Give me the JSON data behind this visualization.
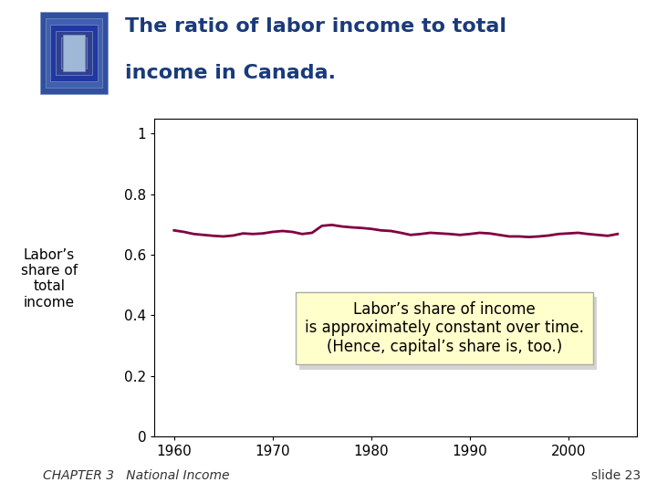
{
  "title_line1": "The ratio of labor income to total",
  "title_line2": "income in Canada.",
  "title_color": "#1a3a7a",
  "title_fontsize": 16,
  "ylabel": "Labor’s\nshare of\ntotal\nincome",
  "ylabel_fontsize": 11,
  "xlim": [
    1958,
    2007
  ],
  "ylim": [
    0,
    1.05
  ],
  "yticks": [
    0,
    0.2,
    0.4,
    0.6,
    0.8,
    1
  ],
  "xticks": [
    1960,
    1970,
    1980,
    1990,
    2000
  ],
  "line_color": "#800040",
  "line_width": 2.0,
  "annotation_text": "Labor’s share of income\nis approximately constant over time.\n(Hence, capital’s share is, too.)",
  "annotation_fontsize": 12,
  "annotation_bg": "#ffffcc",
  "annotation_border": "#aaaaaa",
  "footer_left": "CHAPTER 3   National Income",
  "footer_right": "slide 23",
  "footer_fontsize": 10,
  "bg_color": "#d8ecc8",
  "slide_bg": "#ffffff",
  "x_values": [
    1960,
    1961,
    1962,
    1963,
    1964,
    1965,
    1966,
    1967,
    1968,
    1969,
    1970,
    1971,
    1972,
    1973,
    1974,
    1975,
    1976,
    1977,
    1978,
    1979,
    1980,
    1981,
    1982,
    1983,
    1984,
    1985,
    1986,
    1987,
    1988,
    1989,
    1990,
    1991,
    1992,
    1993,
    1994,
    1995,
    1996,
    1997,
    1998,
    1999,
    2000,
    2001,
    2002,
    2003,
    2004,
    2005
  ],
  "y_values": [
    0.68,
    0.675,
    0.668,
    0.665,
    0.662,
    0.66,
    0.663,
    0.67,
    0.668,
    0.67,
    0.675,
    0.678,
    0.675,
    0.668,
    0.672,
    0.695,
    0.698,
    0.693,
    0.69,
    0.688,
    0.685,
    0.68,
    0.678,
    0.672,
    0.665,
    0.668,
    0.672,
    0.67,
    0.668,
    0.665,
    0.668,
    0.672,
    0.67,
    0.665,
    0.66,
    0.66,
    0.658,
    0.66,
    0.663,
    0.668,
    0.67,
    0.672,
    0.668,
    0.665,
    0.662,
    0.668
  ]
}
